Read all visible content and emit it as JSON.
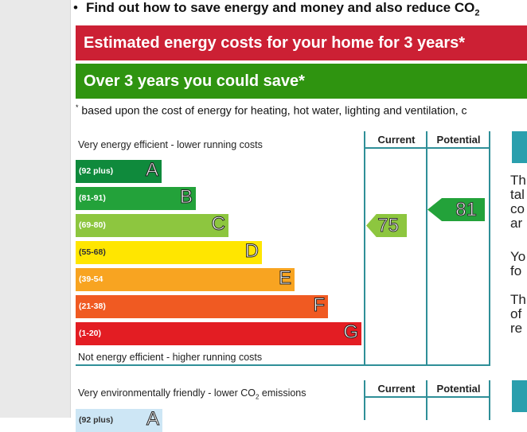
{
  "header": {
    "bullet": "•",
    "bullet_text": "Find out how to save energy and money and also reduce CO",
    "bullet_sub": "2"
  },
  "bands": {
    "costs": "Estimated energy costs for your home for 3 years*",
    "save": "Over 3 years you could save*",
    "footnote_star": "*",
    "footnote": " based upon the cost of energy for heating, hot water, lighting and ventilation, c"
  },
  "colors": {
    "red": "#cc2034",
    "green": "#2f9410",
    "teal": "#2f8f98"
  },
  "energy_chart": {
    "top_label": "Very energy efficient - lower running costs",
    "bottom_label": "Not energy efficient - higher running costs",
    "col_current": "Current",
    "col_potential": "Potential",
    "bands": [
      {
        "range": "(92 plus)",
        "letter": "A",
        "color": "#0f8a3c"
      },
      {
        "range": "(81-91)",
        "letter": "B",
        "color": "#23a23a"
      },
      {
        "range": "(69-80)",
        "letter": "C",
        "color": "#8dc63f"
      },
      {
        "range": "(55-68)",
        "letter": "D",
        "color": "#ffe600"
      },
      {
        "range": "(39-54",
        "letter": "E",
        "color": "#f8a421"
      },
      {
        "range": "(21-38)",
        "letter": "F",
        "color": "#f05a22"
      },
      {
        "range": "(1-20)",
        "letter": "G",
        "color": "#e31d23"
      }
    ],
    "current": "75",
    "potential": "81"
  },
  "side_text": {
    "l1": "Th",
    "l2": "tal",
    "l3": "co",
    "l4": "ar",
    "l5": "Yo",
    "l6": "fo",
    "l7": "Th",
    "l8": "of",
    "l9": "re"
  },
  "env_chart": {
    "top_label_pre": "Very environmentally friendly - lower CO",
    "top_label_sub": "2",
    "top_label_post": " emissions",
    "col_current": "Current",
    "col_potential": "Potential",
    "first_band": {
      "range": "(92 plus)",
      "letter": "A"
    }
  }
}
